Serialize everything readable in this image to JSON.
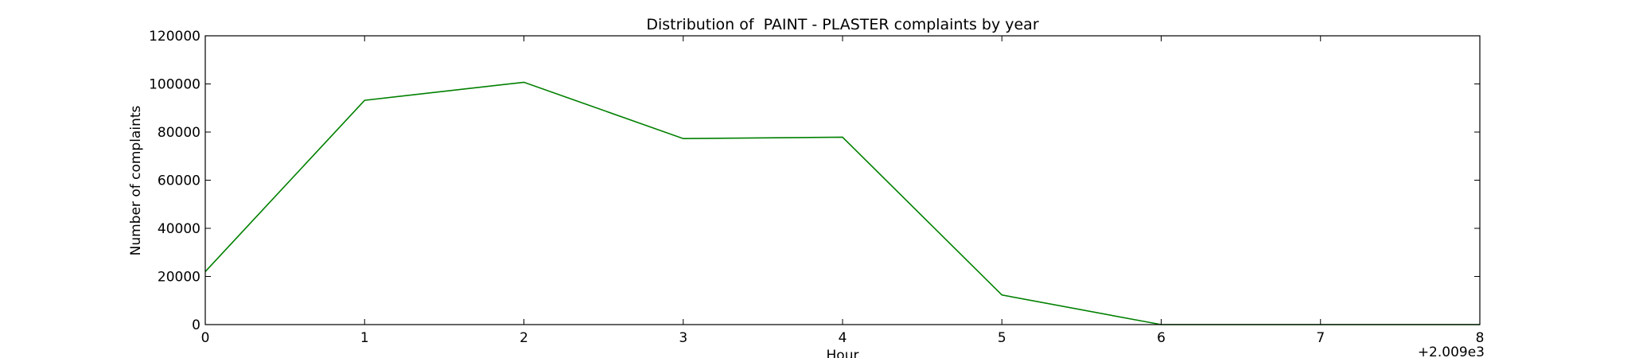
{
  "chart_data": {
    "type": "line",
    "title": "Distribution of  PAINT - PLASTER complaints by year",
    "xlabel": "Hour",
    "ylabel": "Number of complaints",
    "x_offset_label": "+2.009e3",
    "x": [
      0,
      1,
      2,
      3,
      4,
      5,
      6,
      7,
      8
    ],
    "x_tick_labels": [
      "0",
      "1",
      "2",
      "3",
      "4",
      "5",
      "6",
      "7",
      "8"
    ],
    "y_tick_values": [
      0,
      20000,
      40000,
      60000,
      80000,
      100000,
      120000
    ],
    "y_tick_labels": [
      "0",
      "20000",
      "40000",
      "60000",
      "80000",
      "100000",
      "120000"
    ],
    "xlim": [
      0,
      8
    ],
    "ylim": [
      0,
      120000
    ],
    "grid": false,
    "series": [
      {
        "color": "#008000",
        "values": [
          22000,
          93200,
          100700,
          77300,
          77900,
          12300,
          0,
          0,
          0
        ]
      }
    ]
  }
}
